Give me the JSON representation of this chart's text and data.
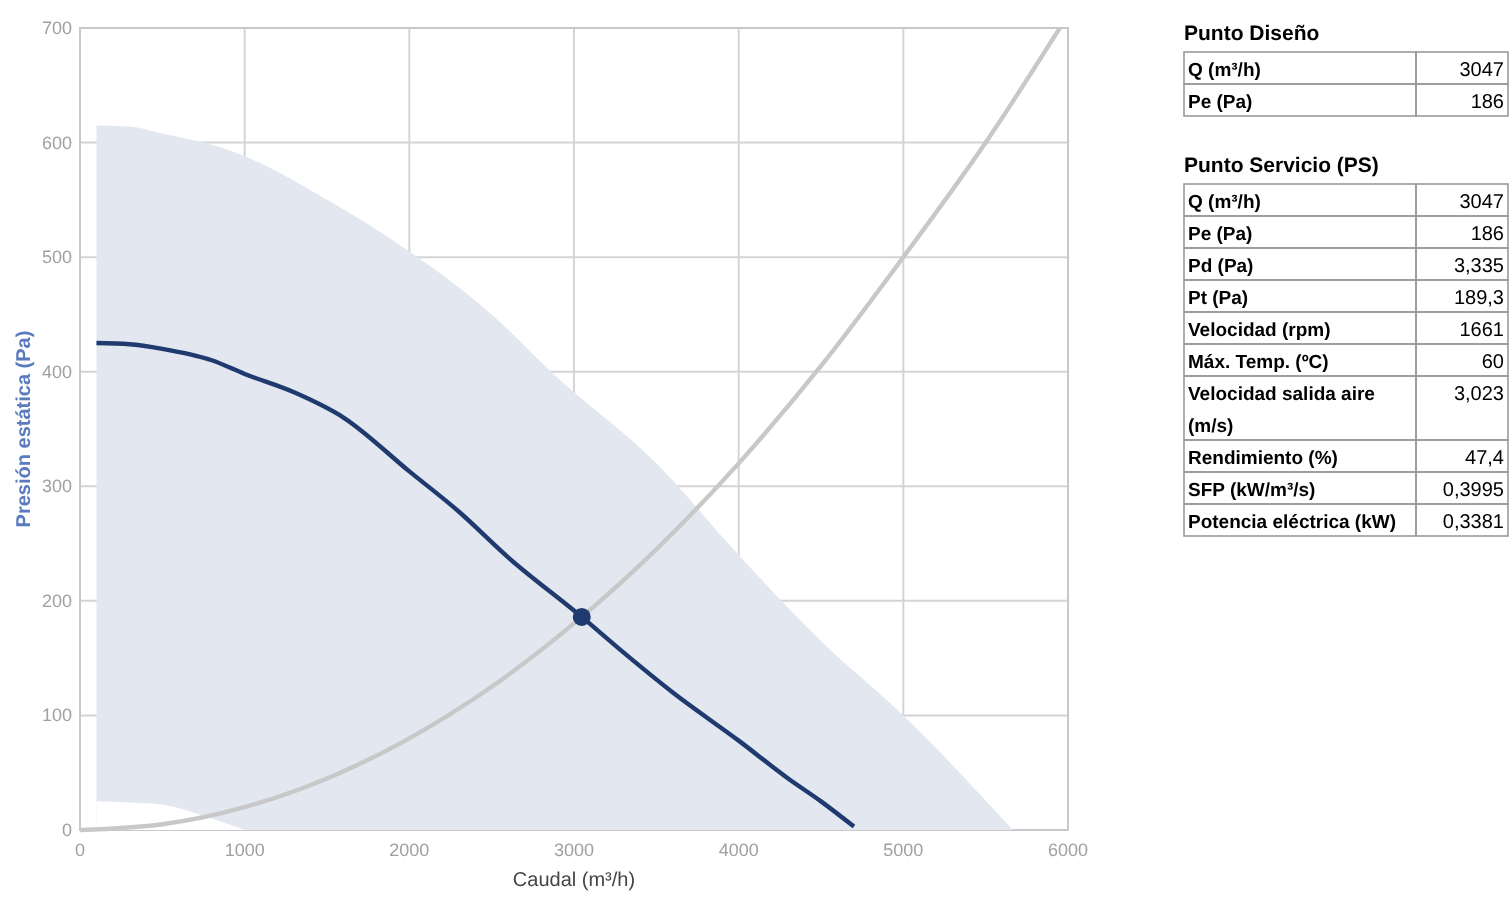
{
  "chart_data": [
    {
      "type": "line",
      "xlabel": "Caudal (m³/h)",
      "ylabel": "Presión estática (Pa)",
      "xlim": [
        0,
        6000
      ],
      "xticks": [
        0,
        1000,
        2000,
        3000,
        4000,
        5000,
        6000
      ],
      "ylim": [
        0,
        700
      ],
      "yticks": [
        0,
        100,
        200,
        300,
        400,
        500,
        600,
        700
      ],
      "grid": true,
      "series": [
        {
          "type": "area",
          "color": "#e3e7f0",
          "x": [
            100,
            300,
            500,
            800,
            1000,
            1500,
            2000,
            2500,
            2874,
            3500,
            4000,
            4500,
            5000,
            5665
          ],
          "values": [
            615,
            614,
            608,
            598,
            588,
            550,
            505,
            450,
            398,
            320,
            240,
            165,
            100,
            0
          ]
        },
        {
          "type": "area",
          "color": "#ffffff",
          "x": [
            100,
            300,
            500,
            800,
            1000
          ],
          "values": [
            25,
            24,
            22,
            10,
            0
          ]
        },
        {
          "type": "line",
          "color": "#c8c8c8",
          "x": [
            0,
            500,
            1000,
            1500,
            2000,
            2500,
            3047,
            3500,
            4000,
            4500,
            5000,
            5500,
            5950
          ],
          "values": [
            0,
            5,
            20,
            45,
            80,
            125,
            186,
            245,
            320,
            405,
            500,
            600,
            700
          ]
        },
        {
          "type": "line",
          "color": "#1f3a6e",
          "x": [
            100,
            300,
            500,
            800,
            1000,
            1300,
            1600,
            2000,
            2300,
            2600,
            3047,
            3300,
            3600,
            4000,
            4300,
            4500,
            4700
          ],
          "values": [
            425,
            424,
            420,
            410,
            398,
            382,
            360,
            313,
            278,
            238,
            186,
            155,
            120,
            78,
            45,
            25,
            3
          ]
        },
        {
          "type": "scatter",
          "color": "#1f3a6e",
          "marker": "circle",
          "x": [
            3047
          ],
          "values": [
            186
          ]
        }
      ]
    },
    {
      "type": "other",
      "title": "Punto Diseño",
      "categories": [
        "Q (m³/h)",
        "Pe (Pa)"
      ],
      "value_labels": [
        "3047",
        "186"
      ]
    },
    {
      "type": "other",
      "title": "Punto Servicio (PS)",
      "categories": [
        "Q (m³/h)",
        "Pe (Pa)",
        "Pd (Pa)",
        "Pt (Pa)",
        "Velocidad (rpm)",
        "Máx. Temp. (ºC)",
        "Velocidad salida aire (m/s)",
        "Rendimiento (%)",
        "SFP (kW/m³/s)",
        "Potencia eléctrica (kW)"
      ],
      "value_labels": [
        "3047",
        "186",
        "3,335",
        "189,3",
        "1661",
        "60",
        "3,023",
        "47,4",
        "0,3995",
        "0,3381"
      ]
    }
  ]
}
